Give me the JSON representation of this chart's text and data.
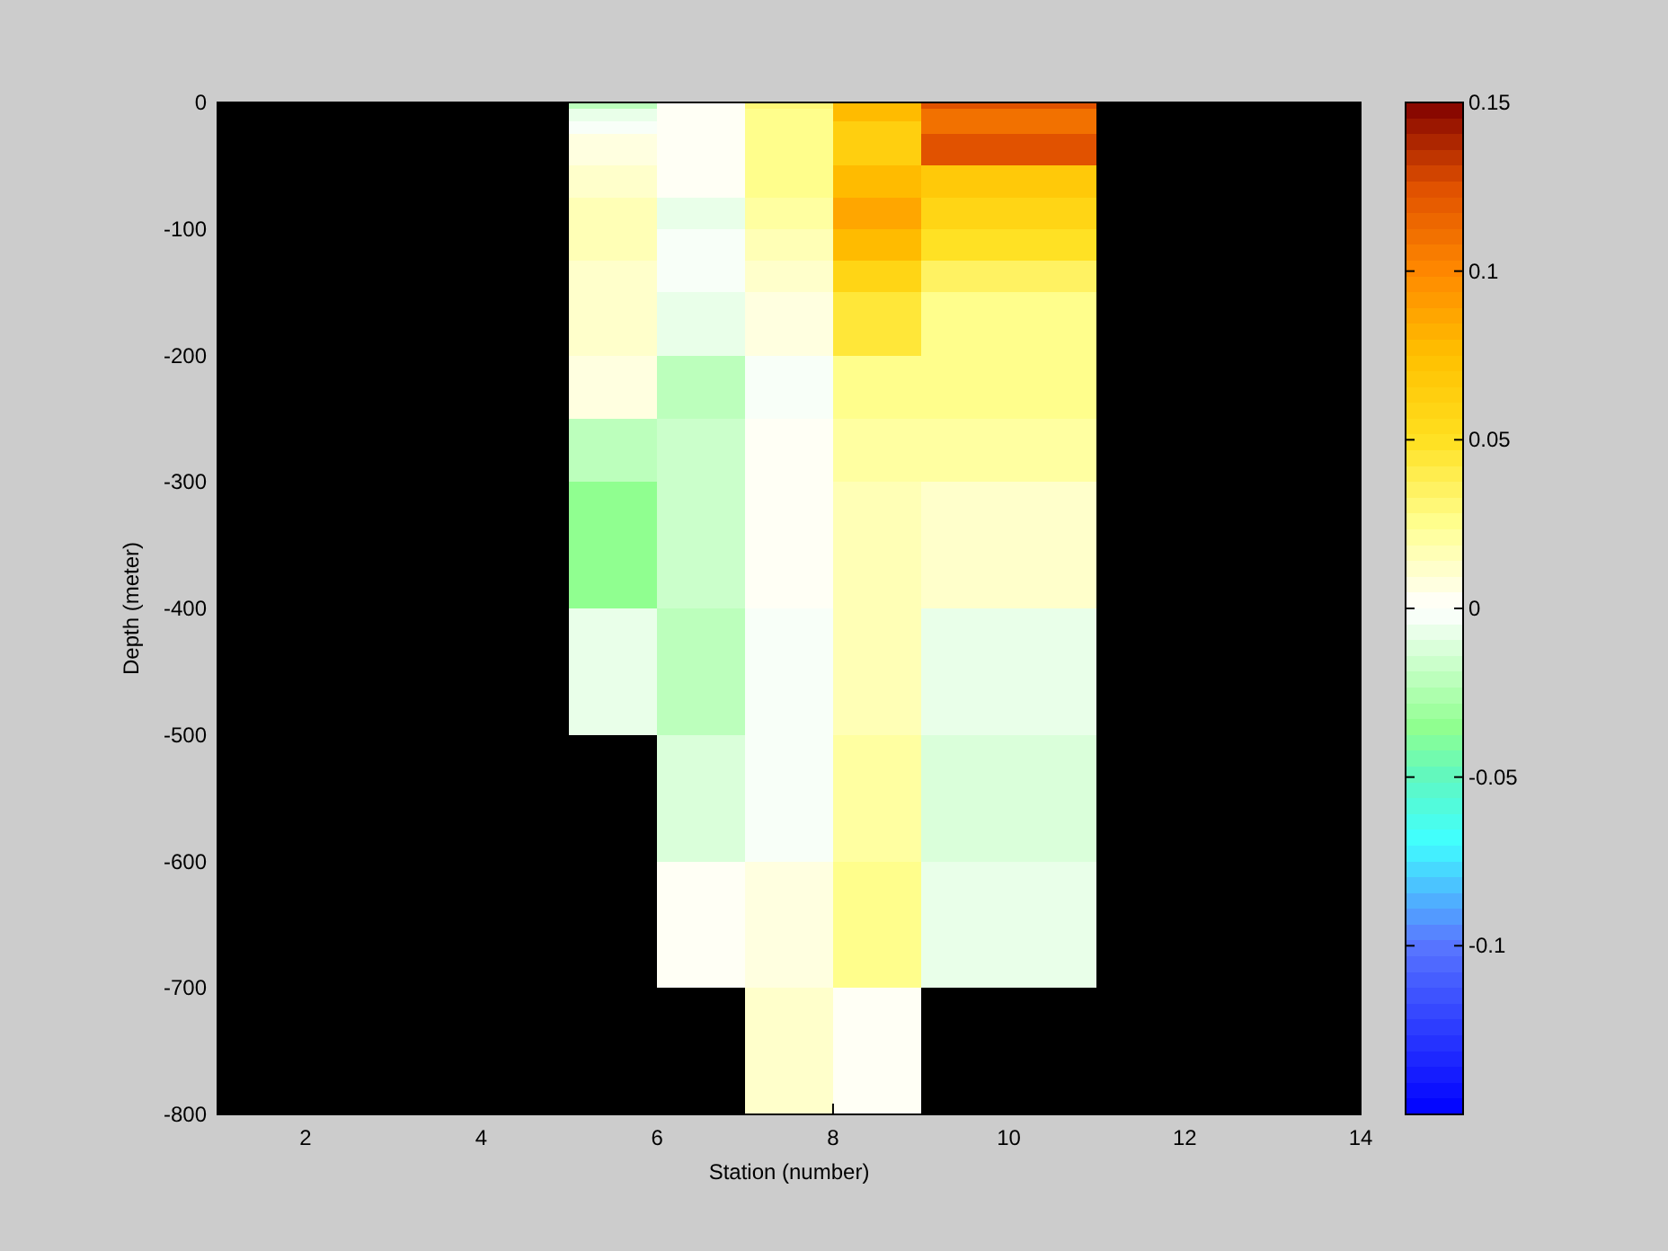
{
  "chart_data": {
    "type": "heatmap",
    "xlabel": "Station (number)",
    "ylabel": "Depth (meter)",
    "xlim": [
      1,
      14
    ],
    "xticks": [
      2,
      4,
      6,
      8,
      10,
      12,
      14
    ],
    "ylim": [
      -800,
      0
    ],
    "yticks": [
      0,
      -100,
      -200,
      -300,
      -400,
      -500,
      -600,
      -700,
      -800
    ],
    "clim": [
      -0.15,
      0.15
    ],
    "cticks": [
      0.15,
      0.1,
      0.05,
      0,
      -0.05,
      -0.1
    ],
    "cells": [
      [
        null,
        null,
        null,
        null,
        -0.02,
        0.002,
        0.03,
        0.075,
        0.125,
        0.125,
        null,
        null,
        null
      ],
      [
        null,
        null,
        null,
        null,
        -0.008,
        0.002,
        0.025,
        0.075,
        0.11,
        0.11,
        null,
        null,
        null
      ],
      [
        null,
        null,
        null,
        null,
        -0.008,
        0.002,
        0.025,
        0.075,
        0.11,
        0.11,
        null,
        null,
        null
      ],
      [
        null,
        null,
        null,
        null,
        -0.003,
        0.002,
        0.027,
        0.062,
        0.11,
        0.11,
        null,
        null,
        null
      ],
      [
        null,
        null,
        null,
        null,
        -0.003,
        0.002,
        0.027,
        0.062,
        0.11,
        0.11,
        null,
        null,
        null
      ],
      [
        null,
        null,
        null,
        null,
        0.005,
        0.002,
        0.027,
        0.062,
        0.125,
        0.125,
        null,
        null,
        null
      ],
      [
        null,
        null,
        null,
        null,
        0.005,
        0.002,
        0.027,
        0.062,
        0.125,
        0.125,
        null,
        null,
        null
      ],
      [
        null,
        null,
        null,
        null,
        0.005,
        0.002,
        0.027,
        0.062,
        0.125,
        0.125,
        null,
        null,
        null
      ],
      [
        null,
        null,
        null,
        null,
        0.005,
        0.002,
        0.027,
        0.062,
        0.125,
        0.125,
        null,
        null,
        null
      ],
      [
        null,
        null,
        null,
        null,
        0.005,
        0.002,
        0.027,
        0.062,
        0.125,
        0.125,
        null,
        null,
        null
      ],
      [
        null,
        null,
        null,
        null,
        0.01,
        0.002,
        0.027,
        0.075,
        0.07,
        0.07,
        null,
        null,
        null
      ],
      [
        null,
        null,
        null,
        null,
        0.01,
        0.002,
        0.027,
        0.075,
        0.07,
        0.07,
        null,
        null,
        null
      ],
      [
        null,
        null,
        null,
        null,
        0.01,
        0.002,
        0.027,
        0.075,
        0.07,
        0.07,
        null,
        null,
        null
      ],
      [
        null,
        null,
        null,
        null,
        0.01,
        0.002,
        0.027,
        0.075,
        0.07,
        0.07,
        null,
        null,
        null
      ],
      [
        null,
        null,
        null,
        null,
        0.01,
        0.002,
        0.027,
        0.075,
        0.07,
        0.07,
        null,
        null,
        null
      ],
      [
        null,
        null,
        null,
        null,
        0.015,
        -0.008,
        0.022,
        0.085,
        0.058,
        0.058,
        null,
        null,
        null
      ],
      [
        null,
        null,
        null,
        null,
        0.015,
        -0.008,
        0.022,
        0.085,
        0.058,
        0.058,
        null,
        null,
        null
      ],
      [
        null,
        null,
        null,
        null,
        0.015,
        -0.008,
        0.022,
        0.085,
        0.058,
        0.058,
        null,
        null,
        null
      ],
      [
        null,
        null,
        null,
        null,
        0.015,
        -0.008,
        0.022,
        0.085,
        0.058,
        0.058,
        null,
        null,
        null
      ],
      [
        null,
        null,
        null,
        null,
        0.015,
        -0.008,
        0.022,
        0.085,
        0.058,
        0.058,
        null,
        null,
        null
      ],
      [
        null,
        null,
        null,
        null,
        0.015,
        -0.004,
        0.018,
        0.075,
        0.05,
        0.05,
        null,
        null,
        null
      ],
      [
        null,
        null,
        null,
        null,
        0.015,
        -0.004,
        0.018,
        0.075,
        0.05,
        0.05,
        null,
        null,
        null
      ],
      [
        null,
        null,
        null,
        null,
        0.015,
        -0.004,
        0.018,
        0.075,
        0.05,
        0.05,
        null,
        null,
        null
      ],
      [
        null,
        null,
        null,
        null,
        0.015,
        -0.004,
        0.018,
        0.075,
        0.05,
        0.05,
        null,
        null,
        null
      ],
      [
        null,
        null,
        null,
        null,
        0.015,
        -0.004,
        0.018,
        0.075,
        0.05,
        0.05,
        null,
        null,
        null
      ],
      [
        null,
        null,
        null,
        null,
        0.012,
        -0.004,
        0.012,
        0.06,
        0.033,
        0.033,
        null,
        null,
        null
      ],
      [
        null,
        null,
        null,
        null,
        0.012,
        -0.004,
        0.012,
        0.06,
        0.033,
        0.033,
        null,
        null,
        null
      ],
      [
        null,
        null,
        null,
        null,
        0.012,
        -0.004,
        0.012,
        0.06,
        0.033,
        0.033,
        null,
        null,
        null
      ],
      [
        null,
        null,
        null,
        null,
        0.012,
        -0.004,
        0.012,
        0.06,
        0.033,
        0.033,
        null,
        null,
        null
      ],
      [
        null,
        null,
        null,
        null,
        0.012,
        -0.004,
        0.012,
        0.06,
        0.033,
        0.033,
        null,
        null,
        null
      ],
      [
        null,
        null,
        null,
        null,
        0.01,
        -0.007,
        0.007,
        0.045,
        0.025,
        0.025,
        null,
        null,
        null
      ],
      [
        null,
        null,
        null,
        null,
        0.01,
        -0.007,
        0.007,
        0.045,
        0.025,
        0.025,
        null,
        null,
        null
      ],
      [
        null,
        null,
        null,
        null,
        0.01,
        -0.007,
        0.007,
        0.045,
        0.025,
        0.025,
        null,
        null,
        null
      ],
      [
        null,
        null,
        null,
        null,
        0.01,
        -0.007,
        0.007,
        0.045,
        0.025,
        0.025,
        null,
        null,
        null
      ],
      [
        null,
        null,
        null,
        null,
        0.01,
        -0.007,
        0.007,
        0.045,
        0.025,
        0.025,
        null,
        null,
        null
      ],
      [
        null,
        null,
        null,
        null,
        0.01,
        -0.007,
        0.007,
        0.045,
        0.025,
        0.025,
        null,
        null,
        null
      ],
      [
        null,
        null,
        null,
        null,
        0.01,
        -0.007,
        0.007,
        0.045,
        0.025,
        0.025,
        null,
        null,
        null
      ],
      [
        null,
        null,
        null,
        null,
        0.01,
        -0.007,
        0.007,
        0.045,
        0.025,
        0.025,
        null,
        null,
        null
      ],
      [
        null,
        null,
        null,
        null,
        0.01,
        -0.007,
        0.007,
        0.045,
        0.025,
        0.025,
        null,
        null,
        null
      ],
      [
        null,
        null,
        null,
        null,
        0.01,
        -0.007,
        0.007,
        0.045,
        0.025,
        0.025,
        null,
        null,
        null
      ],
      [
        null,
        null,
        null,
        null,
        0.005,
        -0.022,
        -0.003,
        0.025,
        0.025,
        0.025,
        null,
        null,
        null
      ],
      [
        null,
        null,
        null,
        null,
        0.005,
        -0.022,
        -0.003,
        0.025,
        0.025,
        0.025,
        null,
        null,
        null
      ],
      [
        null,
        null,
        null,
        null,
        0.005,
        -0.022,
        -0.003,
        0.025,
        0.025,
        0.025,
        null,
        null,
        null
      ],
      [
        null,
        null,
        null,
        null,
        0.005,
        -0.022,
        -0.003,
        0.025,
        0.025,
        0.025,
        null,
        null,
        null
      ],
      [
        null,
        null,
        null,
        null,
        0.005,
        -0.022,
        -0.003,
        0.025,
        0.025,
        0.025,
        null,
        null,
        null
      ],
      [
        null,
        null,
        null,
        null,
        0.005,
        -0.022,
        -0.003,
        0.025,
        0.025,
        0.025,
        null,
        null,
        null
      ],
      [
        null,
        null,
        null,
        null,
        0.005,
        -0.022,
        -0.003,
        0.025,
        0.025,
        0.025,
        null,
        null,
        null
      ],
      [
        null,
        null,
        null,
        null,
        0.005,
        -0.022,
        -0.003,
        0.025,
        0.025,
        0.025,
        null,
        null,
        null
      ],
      [
        null,
        null,
        null,
        null,
        0.005,
        -0.022,
        -0.003,
        0.025,
        0.025,
        0.025,
        null,
        null,
        null
      ],
      [
        null,
        null,
        null,
        null,
        0.005,
        -0.022,
        -0.003,
        0.025,
        0.025,
        0.025,
        null,
        null,
        null
      ],
      [
        null,
        null,
        null,
        null,
        -0.02,
        -0.015,
        0.002,
        0.022,
        0.022,
        0.022,
        null,
        null,
        null
      ],
      [
        null,
        null,
        null,
        null,
        -0.02,
        -0.015,
        0.002,
        0.022,
        0.022,
        0.022,
        null,
        null,
        null
      ],
      [
        null,
        null,
        null,
        null,
        -0.02,
        -0.015,
        0.002,
        0.022,
        0.022,
        0.022,
        null,
        null,
        null
      ],
      [
        null,
        null,
        null,
        null,
        -0.02,
        -0.015,
        0.002,
        0.022,
        0.022,
        0.022,
        null,
        null,
        null
      ],
      [
        null,
        null,
        null,
        null,
        -0.02,
        -0.015,
        0.002,
        0.022,
        0.022,
        0.022,
        null,
        null,
        null
      ],
      [
        null,
        null,
        null,
        null,
        -0.02,
        -0.015,
        0.002,
        0.022,
        0.022,
        0.022,
        null,
        null,
        null
      ],
      [
        null,
        null,
        null,
        null,
        -0.02,
        -0.015,
        0.002,
        0.022,
        0.022,
        0.022,
        null,
        null,
        null
      ],
      [
        null,
        null,
        null,
        null,
        -0.02,
        -0.015,
        0.002,
        0.022,
        0.022,
        0.022,
        null,
        null,
        null
      ],
      [
        null,
        null,
        null,
        null,
        -0.02,
        -0.015,
        0.002,
        0.022,
        0.022,
        0.022,
        null,
        null,
        null
      ],
      [
        null,
        null,
        null,
        null,
        -0.02,
        -0.015,
        0.002,
        0.022,
        0.022,
        0.022,
        null,
        null,
        null
      ],
      [
        null,
        null,
        null,
        null,
        -0.035,
        -0.015,
        0.002,
        0.018,
        0.012,
        0.012,
        null,
        null,
        null
      ],
      [
        null,
        null,
        null,
        null,
        -0.035,
        -0.015,
        0.002,
        0.018,
        0.012,
        0.012,
        null,
        null,
        null
      ],
      [
        null,
        null,
        null,
        null,
        -0.035,
        -0.015,
        0.002,
        0.018,
        0.012,
        0.012,
        null,
        null,
        null
      ],
      [
        null,
        null,
        null,
        null,
        -0.035,
        -0.015,
        0.002,
        0.018,
        0.012,
        0.012,
        null,
        null,
        null
      ],
      [
        null,
        null,
        null,
        null,
        -0.035,
        -0.015,
        0.002,
        0.018,
        0.012,
        0.012,
        null,
        null,
        null
      ],
      [
        null,
        null,
        null,
        null,
        -0.035,
        -0.015,
        0.002,
        0.018,
        0.012,
        0.012,
        null,
        null,
        null
      ],
      [
        null,
        null,
        null,
        null,
        -0.035,
        -0.015,
        0.002,
        0.018,
        0.012,
        0.012,
        null,
        null,
        null
      ],
      [
        null,
        null,
        null,
        null,
        -0.035,
        -0.015,
        0.002,
        0.018,
        0.012,
        0.012,
        null,
        null,
        null
      ],
      [
        null,
        null,
        null,
        null,
        -0.035,
        -0.015,
        0.002,
        0.018,
        0.012,
        0.012,
        null,
        null,
        null
      ],
      [
        null,
        null,
        null,
        null,
        -0.035,
        -0.015,
        0.002,
        0.018,
        0.012,
        0.012,
        null,
        null,
        null
      ],
      [
        null,
        null,
        null,
        null,
        -0.035,
        -0.015,
        0.002,
        0.018,
        0.012,
        0.012,
        null,
        null,
        null
      ],
      [
        null,
        null,
        null,
        null,
        -0.035,
        -0.015,
        0.002,
        0.018,
        0.012,
        0.012,
        null,
        null,
        null
      ],
      [
        null,
        null,
        null,
        null,
        -0.035,
        -0.015,
        0.002,
        0.018,
        0.012,
        0.012,
        null,
        null,
        null
      ],
      [
        null,
        null,
        null,
        null,
        -0.035,
        -0.015,
        0.002,
        0.018,
        0.012,
        0.012,
        null,
        null,
        null
      ],
      [
        null,
        null,
        null,
        null,
        -0.035,
        -0.015,
        0.002,
        0.018,
        0.012,
        0.012,
        null,
        null,
        null
      ],
      [
        null,
        null,
        null,
        null,
        -0.035,
        -0.015,
        0.002,
        0.018,
        0.012,
        0.012,
        null,
        null,
        null
      ],
      [
        null,
        null,
        null,
        null,
        -0.035,
        -0.015,
        0.002,
        0.018,
        0.012,
        0.012,
        null,
        null,
        null
      ],
      [
        null,
        null,
        null,
        null,
        -0.035,
        -0.015,
        0.002,
        0.018,
        0.012,
        0.012,
        null,
        null,
        null
      ],
      [
        null,
        null,
        null,
        null,
        -0.035,
        -0.015,
        0.002,
        0.018,
        0.012,
        0.012,
        null,
        null,
        null
      ],
      [
        null,
        null,
        null,
        null,
        -0.035,
        -0.015,
        0.002,
        0.018,
        0.012,
        0.012,
        null,
        null,
        null
      ],
      [
        null,
        null,
        null,
        null,
        -0.008,
        -0.022,
        -0.003,
        0.018,
        -0.008,
        -0.008,
        null,
        null,
        null
      ],
      [
        null,
        null,
        null,
        null,
        -0.008,
        -0.022,
        -0.003,
        0.018,
        -0.008,
        -0.008,
        null,
        null,
        null
      ],
      [
        null,
        null,
        null,
        null,
        -0.008,
        -0.022,
        -0.003,
        0.018,
        -0.008,
        -0.008,
        null,
        null,
        null
      ],
      [
        null,
        null,
        null,
        null,
        -0.008,
        -0.022,
        -0.003,
        0.018,
        -0.008,
        -0.008,
        null,
        null,
        null
      ],
      [
        null,
        null,
        null,
        null,
        -0.008,
        -0.022,
        -0.003,
        0.018,
        -0.008,
        -0.008,
        null,
        null,
        null
      ],
      [
        null,
        null,
        null,
        null,
        -0.008,
        -0.022,
        -0.003,
        0.018,
        -0.008,
        -0.008,
        null,
        null,
        null
      ],
      [
        null,
        null,
        null,
        null,
        -0.008,
        -0.022,
        -0.003,
        0.018,
        -0.008,
        -0.008,
        null,
        null,
        null
      ],
      [
        null,
        null,
        null,
        null,
        -0.008,
        -0.022,
        -0.003,
        0.018,
        -0.008,
        -0.008,
        null,
        null,
        null
      ],
      [
        null,
        null,
        null,
        null,
        -0.008,
        -0.022,
        -0.003,
        0.018,
        -0.008,
        -0.008,
        null,
        null,
        null
      ],
      [
        null,
        null,
        null,
        null,
        -0.008,
        -0.022,
        -0.003,
        0.018,
        -0.008,
        -0.008,
        null,
        null,
        null
      ],
      [
        null,
        null,
        null,
        null,
        -0.008,
        -0.022,
        -0.003,
        0.018,
        -0.008,
        -0.008,
        null,
        null,
        null
      ],
      [
        null,
        null,
        null,
        null,
        -0.008,
        -0.022,
        -0.003,
        0.018,
        -0.008,
        -0.008,
        null,
        null,
        null
      ],
      [
        null,
        null,
        null,
        null,
        -0.008,
        -0.022,
        -0.003,
        0.018,
        -0.008,
        -0.008,
        null,
        null,
        null
      ],
      [
        null,
        null,
        null,
        null,
        -0.008,
        -0.022,
        -0.003,
        0.018,
        -0.008,
        -0.008,
        null,
        null,
        null
      ],
      [
        null,
        null,
        null,
        null,
        -0.008,
        -0.022,
        -0.003,
        0.018,
        -0.008,
        -0.008,
        null,
        null,
        null
      ],
      [
        null,
        null,
        null,
        null,
        -0.008,
        -0.022,
        -0.003,
        0.018,
        -0.008,
        -0.008,
        null,
        null,
        null
      ],
      [
        null,
        null,
        null,
        null,
        -0.008,
        -0.022,
        -0.003,
        0.018,
        -0.008,
        -0.008,
        null,
        null,
        null
      ],
      [
        null,
        null,
        null,
        null,
        -0.008,
        -0.022,
        -0.003,
        0.018,
        -0.008,
        -0.008,
        null,
        null,
        null
      ],
      [
        null,
        null,
        null,
        null,
        -0.008,
        -0.022,
        -0.003,
        0.018,
        -0.008,
        -0.008,
        null,
        null,
        null
      ],
      [
        null,
        null,
        null,
        null,
        -0.008,
        -0.022,
        -0.003,
        0.018,
        -0.008,
        -0.008,
        null,
        null,
        null
      ],
      [
        null,
        null,
        null,
        null,
        null,
        -0.012,
        -0.003,
        0.02,
        -0.012,
        -0.012,
        null,
        null,
        null
      ],
      [
        null,
        null,
        null,
        null,
        null,
        -0.012,
        -0.003,
        0.02,
        -0.012,
        -0.012,
        null,
        null,
        null
      ],
      [
        null,
        null,
        null,
        null,
        null,
        -0.012,
        -0.003,
        0.02,
        -0.012,
        -0.012,
        null,
        null,
        null
      ],
      [
        null,
        null,
        null,
        null,
        null,
        -0.012,
        -0.003,
        0.02,
        -0.012,
        -0.012,
        null,
        null,
        null
      ],
      [
        null,
        null,
        null,
        null,
        null,
        -0.012,
        -0.003,
        0.02,
        -0.012,
        -0.012,
        null,
        null,
        null
      ],
      [
        null,
        null,
        null,
        null,
        null,
        -0.012,
        -0.003,
        0.02,
        -0.012,
        -0.012,
        null,
        null,
        null
      ],
      [
        null,
        null,
        null,
        null,
        null,
        -0.012,
        -0.003,
        0.02,
        -0.012,
        -0.012,
        null,
        null,
        null
      ],
      [
        null,
        null,
        null,
        null,
        null,
        -0.012,
        -0.003,
        0.02,
        -0.012,
        -0.012,
        null,
        null,
        null
      ],
      [
        null,
        null,
        null,
        null,
        null,
        -0.012,
        -0.003,
        0.02,
        -0.012,
        -0.012,
        null,
        null,
        null
      ],
      [
        null,
        null,
        null,
        null,
        null,
        -0.012,
        -0.003,
        0.02,
        -0.012,
        -0.012,
        null,
        null,
        null
      ],
      [
        null,
        null,
        null,
        null,
        null,
        -0.012,
        -0.003,
        0.02,
        -0.012,
        -0.012,
        null,
        null,
        null
      ],
      [
        null,
        null,
        null,
        null,
        null,
        -0.012,
        -0.003,
        0.02,
        -0.012,
        -0.012,
        null,
        null,
        null
      ],
      [
        null,
        null,
        null,
        null,
        null,
        -0.012,
        -0.003,
        0.02,
        -0.012,
        -0.012,
        null,
        null,
        null
      ],
      [
        null,
        null,
        null,
        null,
        null,
        -0.012,
        -0.003,
        0.02,
        -0.012,
        -0.012,
        null,
        null,
        null
      ],
      [
        null,
        null,
        null,
        null,
        null,
        -0.012,
        -0.003,
        0.02,
        -0.012,
        -0.012,
        null,
        null,
        null
      ],
      [
        null,
        null,
        null,
        null,
        null,
        -0.012,
        -0.003,
        0.02,
        -0.012,
        -0.012,
        null,
        null,
        null
      ],
      [
        null,
        null,
        null,
        null,
        null,
        -0.012,
        -0.003,
        0.02,
        -0.012,
        -0.012,
        null,
        null,
        null
      ],
      [
        null,
        null,
        null,
        null,
        null,
        -0.012,
        -0.003,
        0.02,
        -0.012,
        -0.012,
        null,
        null,
        null
      ],
      [
        null,
        null,
        null,
        null,
        null,
        -0.012,
        -0.003,
        0.02,
        -0.012,
        -0.012,
        null,
        null,
        null
      ],
      [
        null,
        null,
        null,
        null,
        null,
        -0.012,
        -0.003,
        0.02,
        -0.012,
        -0.012,
        null,
        null,
        null
      ],
      [
        null,
        null,
        null,
        null,
        null,
        0.004,
        0.007,
        0.025,
        -0.008,
        -0.008,
        null,
        null,
        null
      ],
      [
        null,
        null,
        null,
        null,
        null,
        0.004,
        0.007,
        0.025,
        -0.008,
        -0.008,
        null,
        null,
        null
      ],
      [
        null,
        null,
        null,
        null,
        null,
        0.004,
        0.007,
        0.025,
        -0.008,
        -0.008,
        null,
        null,
        null
      ],
      [
        null,
        null,
        null,
        null,
        null,
        0.004,
        0.007,
        0.025,
        -0.008,
        -0.008,
        null,
        null,
        null
      ],
      [
        null,
        null,
        null,
        null,
        null,
        0.004,
        0.007,
        0.025,
        -0.008,
        -0.008,
        null,
        null,
        null
      ],
      [
        null,
        null,
        null,
        null,
        null,
        0.004,
        0.007,
        0.025,
        -0.008,
        -0.008,
        null,
        null,
        null
      ],
      [
        null,
        null,
        null,
        null,
        null,
        0.004,
        0.007,
        0.025,
        -0.008,
        -0.008,
        null,
        null,
        null
      ],
      [
        null,
        null,
        null,
        null,
        null,
        0.004,
        0.007,
        0.025,
        -0.008,
        -0.008,
        null,
        null,
        null
      ],
      [
        null,
        null,
        null,
        null,
        null,
        0.004,
        0.007,
        0.025,
        -0.008,
        -0.008,
        null,
        null,
        null
      ],
      [
        null,
        null,
        null,
        null,
        null,
        0.004,
        0.007,
        0.025,
        -0.008,
        -0.008,
        null,
        null,
        null
      ],
      [
        null,
        null,
        null,
        null,
        null,
        0.004,
        0.007,
        0.025,
        -0.008,
        -0.008,
        null,
        null,
        null
      ],
      [
        null,
        null,
        null,
        null,
        null,
        0.004,
        0.007,
        0.025,
        -0.008,
        -0.008,
        null,
        null,
        null
      ],
      [
        null,
        null,
        null,
        null,
        null,
        0.004,
        0.007,
        0.025,
        -0.008,
        -0.008,
        null,
        null,
        null
      ],
      [
        null,
        null,
        null,
        null,
        null,
        0.004,
        0.007,
        0.025,
        -0.008,
        -0.008,
        null,
        null,
        null
      ],
      [
        null,
        null,
        null,
        null,
        null,
        0.004,
        0.007,
        0.025,
        -0.008,
        -0.008,
        null,
        null,
        null
      ],
      [
        null,
        null,
        null,
        null,
        null,
        0.004,
        0.007,
        0.025,
        -0.008,
        -0.008,
        null,
        null,
        null
      ],
      [
        null,
        null,
        null,
        null,
        null,
        0.004,
        0.007,
        0.025,
        -0.008,
        -0.008,
        null,
        null,
        null
      ],
      [
        null,
        null,
        null,
        null,
        null,
        0.004,
        0.007,
        0.025,
        -0.008,
        -0.008,
        null,
        null,
        null
      ],
      [
        null,
        null,
        null,
        null,
        null,
        0.004,
        0.007,
        0.025,
        -0.008,
        -0.008,
        null,
        null,
        null
      ],
      [
        null,
        null,
        null,
        null,
        null,
        0.004,
        0.007,
        0.025,
        -0.008,
        -0.008,
        null,
        null,
        null
      ],
      [
        null,
        null,
        null,
        null,
        null,
        null,
        0.01,
        0.004,
        null,
        null,
        null,
        null,
        null
      ],
      [
        null,
        null,
        null,
        null,
        null,
        null,
        0.01,
        0.004,
        null,
        null,
        null,
        null,
        null
      ],
      [
        null,
        null,
        null,
        null,
        null,
        null,
        0.01,
        0.004,
        null,
        null,
        null,
        null,
        null
      ],
      [
        null,
        null,
        null,
        null,
        null,
        null,
        0.01,
        0.004,
        null,
        null,
        null,
        null,
        null
      ],
      [
        null,
        null,
        null,
        null,
        null,
        null,
        0.01,
        0.004,
        null,
        null,
        null,
        null,
        null
      ],
      [
        null,
        null,
        null,
        null,
        null,
        null,
        0.01,
        0.004,
        null,
        null,
        null,
        null,
        null
      ],
      [
        null,
        null,
        null,
        null,
        null,
        null,
        0.01,
        0.004,
        null,
        null,
        null,
        null,
        null
      ],
      [
        null,
        null,
        null,
        null,
        null,
        null,
        0.01,
        0.004,
        null,
        null,
        null,
        null,
        null
      ],
      [
        null,
        null,
        null,
        null,
        null,
        null,
        0.01,
        0.004,
        null,
        null,
        null,
        null,
        null
      ],
      [
        null,
        null,
        null,
        null,
        null,
        null,
        0.01,
        0.004,
        null,
        null,
        null,
        null,
        null
      ],
      [
        null,
        null,
        null,
        null,
        null,
        null,
        0.01,
        0.004,
        null,
        null,
        null,
        null,
        null
      ],
      [
        null,
        null,
        null,
        null,
        null,
        null,
        0.01,
        0.004,
        null,
        null,
        null,
        null,
        null
      ],
      [
        null,
        null,
        null,
        null,
        null,
        null,
        0.01,
        0.004,
        null,
        null,
        null,
        null,
        null
      ],
      [
        null,
        null,
        null,
        null,
        null,
        null,
        0.01,
        0.004,
        null,
        null,
        null,
        null,
        null
      ],
      [
        null,
        null,
        null,
        null,
        null,
        null,
        0.01,
        0.004,
        null,
        null,
        null,
        null,
        null
      ],
      [
        null,
        null,
        null,
        null,
        null,
        null,
        0.01,
        0.004,
        null,
        null,
        null,
        null,
        null
      ],
      [
        null,
        null,
        null,
        null,
        null,
        null,
        0.01,
        0.004,
        null,
        null,
        null,
        null,
        null
      ],
      [
        null,
        null,
        null,
        null,
        null,
        null,
        0.01,
        0.004,
        null,
        null,
        null,
        null,
        null
      ],
      [
        null,
        null,
        null,
        null,
        null,
        null,
        0.01,
        0.004,
        null,
        null,
        null,
        null,
        null
      ],
      [
        null,
        null,
        null,
        null,
        null,
        null,
        0.01,
        0.004,
        null,
        null,
        null,
        null,
        null
      ]
    ]
  }
}
